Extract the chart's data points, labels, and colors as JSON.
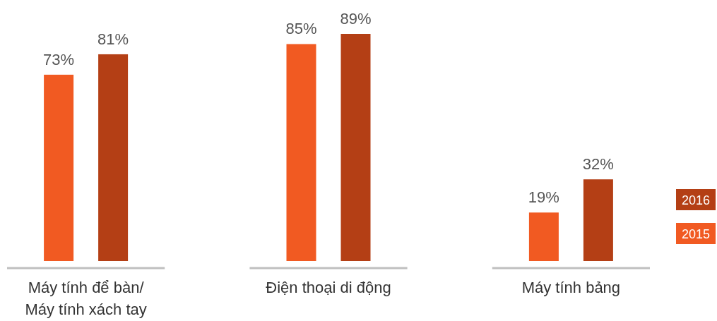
{
  "chart_data": {
    "type": "bar",
    "categories": [
      "Máy tính để bàn/ Máy tính xách tay",
      "Điện thoại di động",
      "Máy tính bảng"
    ],
    "series": [
      {
        "name": "2015",
        "color": "#f15a22",
        "values": [
          73,
          85,
          19
        ],
        "value_labels": [
          "73%",
          "85%",
          "19%"
        ]
      },
      {
        "name": "2016",
        "color": "#b43f15",
        "values": [
          81,
          89,
          32
        ],
        "value_labels": [
          "81%",
          "89%",
          "32%"
        ]
      }
    ],
    "legend": "right"
  }
}
